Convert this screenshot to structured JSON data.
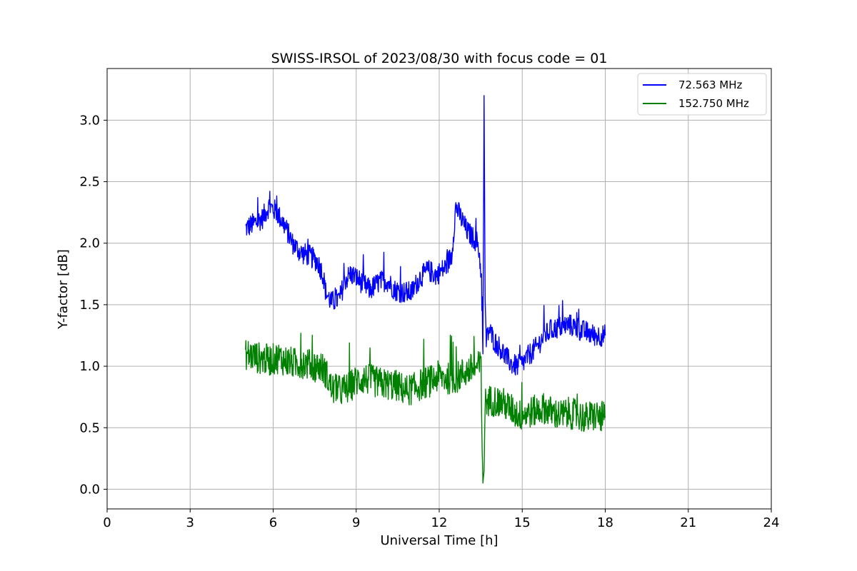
{
  "chart_data": {
    "type": "line",
    "title": "SWISS-IRSOL of 2023/08/30 with focus code = 01",
    "xlabel": "Universal Time [h]",
    "ylabel": "Y-factor [dB]",
    "xlim": [
      0,
      24
    ],
    "ylim": [
      -0.16,
      3.42
    ],
    "xticks": [
      0,
      3,
      6,
      9,
      12,
      15,
      18,
      21,
      24
    ],
    "yticks": [
      0.0,
      0.5,
      1.0,
      1.5,
      2.0,
      2.5,
      3.0
    ],
    "xtick_labels": [
      "0",
      "3",
      "6",
      "9",
      "12",
      "15",
      "18",
      "21",
      "24"
    ],
    "ytick_labels": [
      "0.0",
      "0.5",
      "1.0",
      "1.5",
      "2.0",
      "2.5",
      "3.0"
    ],
    "grid": true,
    "legend_position": "top-right",
    "series": [
      {
        "name": "  72.563 MHz",
        "color": "#0000ff",
        "x": [
          5.0,
          5.3,
          5.6,
          5.85,
          6.1,
          6.4,
          6.7,
          7.0,
          7.3,
          7.6,
          7.8,
          7.9,
          8.1,
          8.4,
          8.6,
          8.8,
          9.0,
          9.2,
          9.5,
          9.8,
          10.1,
          10.4,
          10.7,
          11.0,
          11.3,
          11.6,
          11.9,
          12.2,
          12.45,
          12.6,
          12.8,
          13.0,
          13.2,
          13.4,
          13.5,
          13.58,
          13.62,
          13.66,
          13.7,
          13.8,
          14.0,
          14.2,
          14.4,
          14.6,
          14.8,
          15.0,
          15.2,
          15.5,
          15.8,
          16.1,
          16.4,
          16.7,
          17.0,
          17.3,
          17.6,
          18.0
        ],
        "y": [
          2.12,
          2.16,
          2.2,
          2.3,
          2.26,
          2.15,
          2.0,
          1.92,
          1.9,
          1.85,
          1.75,
          1.6,
          1.52,
          1.55,
          1.7,
          1.75,
          1.72,
          1.68,
          1.62,
          1.68,
          1.7,
          1.62,
          1.6,
          1.6,
          1.72,
          1.78,
          1.74,
          1.8,
          1.9,
          2.3,
          2.2,
          2.1,
          2.05,
          2.0,
          1.8,
          1.1,
          3.2,
          1.55,
          1.2,
          1.3,
          1.2,
          1.15,
          1.08,
          1.02,
          1.0,
          1.02,
          1.08,
          1.15,
          1.25,
          1.3,
          1.32,
          1.34,
          1.3,
          1.28,
          1.25,
          1.25
        ]
      },
      {
        "name": "152.750 MHz",
        "color": "#008000",
        "x": [
          5.0,
          5.3,
          5.6,
          5.9,
          6.2,
          6.5,
          6.8,
          7.1,
          7.4,
          7.7,
          7.9,
          8.1,
          8.4,
          8.7,
          9.0,
          9.3,
          9.6,
          9.9,
          10.2,
          10.5,
          10.8,
          11.1,
          11.4,
          11.7,
          12.0,
          12.3,
          12.6,
          12.9,
          13.2,
          13.5,
          13.58,
          13.62,
          13.66,
          13.75,
          14.0,
          14.3,
          14.6,
          14.9,
          15.2,
          15.5,
          15.8,
          16.1,
          16.4,
          16.7,
          17.0,
          17.3,
          17.6,
          18.0
        ],
        "y": [
          1.1,
          1.08,
          1.06,
          1.05,
          1.07,
          1.04,
          1.02,
          1.03,
          1.0,
          1.0,
          0.95,
          0.82,
          0.8,
          0.82,
          0.88,
          0.9,
          0.88,
          0.86,
          0.85,
          0.84,
          0.8,
          0.82,
          0.86,
          0.88,
          0.92,
          0.9,
          0.9,
          0.95,
          0.98,
          1.0,
          0.05,
          0.15,
          0.7,
          0.72,
          0.72,
          0.7,
          0.65,
          0.6,
          0.62,
          0.64,
          0.66,
          0.62,
          0.6,
          0.62,
          0.6,
          0.58,
          0.6,
          0.58
        ]
      }
    ]
  }
}
